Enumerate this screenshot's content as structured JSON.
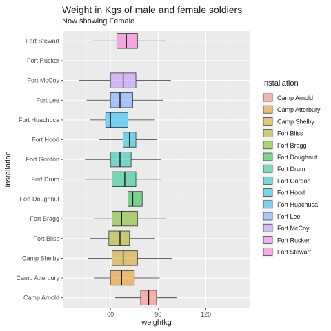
{
  "chart_data": {
    "type": "boxplot",
    "orientation": "horizontal",
    "title": "Weight in Kgs of male and female soldiers",
    "subtitle": "Now showing Female",
    "xlabel": "weightkg",
    "ylabel": "Installation",
    "xlim": [
      30,
      148
    ],
    "xticks": [
      60,
      90,
      120
    ],
    "grid": true,
    "legend_title": "Installation",
    "legend_position": "right",
    "categories": [
      "Camp Arnold",
      "Camp Atterbury",
      "Camp Shelby",
      "Fort Bliss",
      "Fort Bragg",
      "Fort Doughnut",
      "Fort Drum",
      "Fort Gordon",
      "Fort Hood",
      "Fort Huachuca",
      "Fort Lee",
      "Fort McCoy",
      "Fort Rucker",
      "Fort Stewart"
    ],
    "colors": [
      "#F8766D",
      "#E58700",
      "#C99800",
      "#A3A500",
      "#6BB100",
      "#00BA38",
      "#00BF7D",
      "#00C0AF",
      "#00BCD8",
      "#00B0F6",
      "#619CFF",
      "#B983FF",
      "#E76BF3",
      "#FD61D1"
    ],
    "series": [
      {
        "name": "Camp Arnold",
        "min": 63,
        "q1": 79,
        "median": 84,
        "q3": 89,
        "max": 102
      },
      {
        "name": "Camp Atterbury",
        "min": 50,
        "q1": 60,
        "median": 67,
        "q3": 75,
        "max": 91
      },
      {
        "name": "Camp Shelby",
        "min": 46,
        "q1": 61,
        "median": 68,
        "q3": 77,
        "max": 99
      },
      {
        "name": "Fort Bliss",
        "min": 47,
        "q1": 59,
        "median": 66,
        "q3": 72,
        "max": 88
      },
      {
        "name": "Fort Bragg",
        "min": 50,
        "q1": 61,
        "median": 67,
        "q3": 77,
        "max": 95
      },
      {
        "name": "Fort Doughnut",
        "min": 58,
        "q1": 71,
        "median": 74,
        "q3": 80,
        "max": 94
      },
      {
        "name": "Fort Drum",
        "min": 44,
        "q1": 61,
        "median": 69,
        "q3": 76,
        "max": 92
      },
      {
        "name": "Fort Gordon",
        "min": 44,
        "q1": 60,
        "median": 66,
        "q3": 73,
        "max": 92
      },
      {
        "name": "Fort Hood",
        "min": 53,
        "q1": 68,
        "median": 72,
        "q3": 76,
        "max": 89
      },
      {
        "name": "Fort Huachuca",
        "min": 47,
        "q1": 57,
        "median": 60,
        "q3": 71,
        "max": 88
      },
      {
        "name": "Fort Lee",
        "min": 45,
        "q1": 60,
        "median": 66,
        "q3": 74,
        "max": 93
      },
      {
        "name": "Fort McCoy",
        "min": 40,
        "q1": 60,
        "median": 68,
        "q3": 76,
        "max": 98
      },
      {
        "name": "Fort Rucker",
        "min": null,
        "q1": null,
        "median": null,
        "q3": null,
        "max": null
      },
      {
        "name": "Fort Stewart",
        "min": 49,
        "q1": 64,
        "median": 70,
        "q3": 77,
        "max": 95
      }
    ]
  }
}
